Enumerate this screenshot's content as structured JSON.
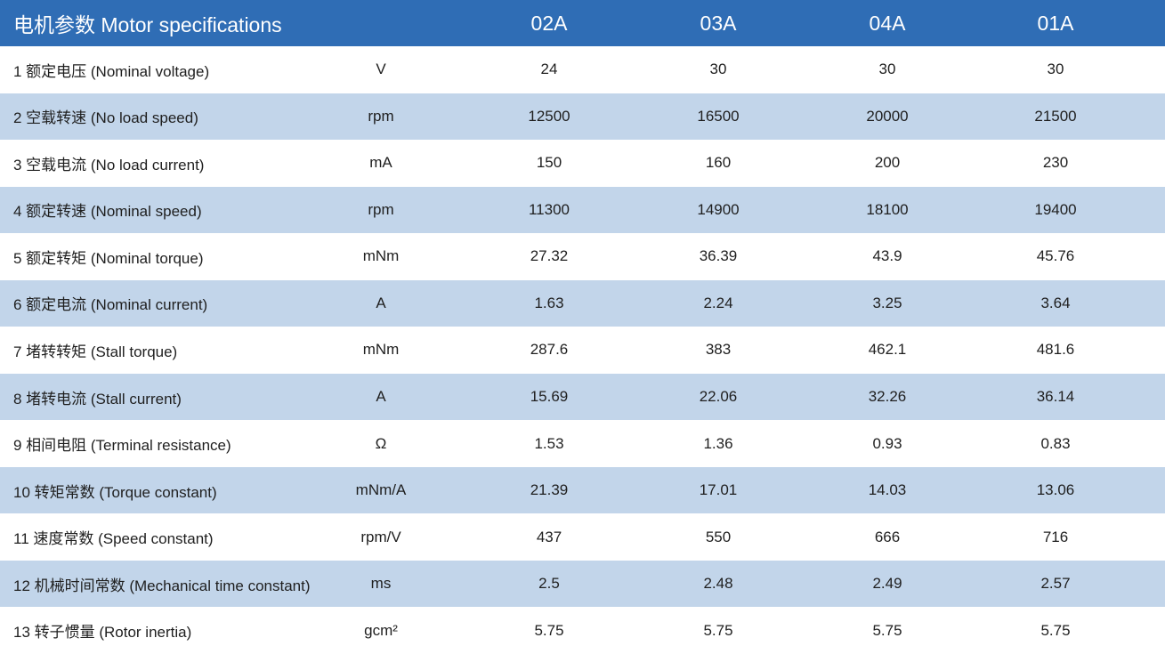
{
  "table": {
    "title": "电机参数 Motor specifications",
    "columns": [
      "02A",
      "03A",
      "04A",
      "01A"
    ],
    "rows": [
      [
        "1 额定电压 (Nominal voltage)",
        "V",
        24,
        30,
        30,
        30
      ],
      [
        "2 空载转速 (No load speed)",
        "rpm",
        12500,
        16500,
        20000,
        21500
      ],
      [
        "3 空载电流 (No load current)",
        "mA",
        150,
        160,
        200,
        230
      ],
      [
        "4 额定转速 (Nominal speed)",
        "rpm",
        11300,
        14900,
        18100,
        19400
      ],
      [
        "5 额定转矩 (Nominal torque)",
        "mNm",
        27.32,
        36.39,
        43.9,
        45.76
      ],
      [
        "6 额定电流 (Nominal current)",
        "A",
        1.63,
        2.24,
        3.25,
        3.64
      ],
      [
        "7 堵转转矩 (Stall torque)",
        "mNm",
        287.6,
        383,
        462.1,
        481.6
      ],
      [
        "8 堵转电流 (Stall current)",
        "A",
        15.69,
        22.06,
        32.26,
        36.14
      ],
      [
        "9 相间电阻 (Terminal resistance)",
        "Ω",
        1.53,
        1.36,
        0.93,
        0.83
      ],
      [
        "10 转矩常数 (Torque constant)",
        "mNm/A",
        21.39,
        17.01,
        14.03,
        13.06
      ],
      [
        "11 速度常数 (Speed constant)",
        "rpm/V",
        437,
        550,
        666,
        716
      ],
      [
        "12 机械时间常数 (Mechanical time constant)",
        "ms",
        2.5,
        2.48,
        2.49,
        2.57
      ],
      [
        "13 转子惯量 (Rotor inertia)",
        "gcm²",
        5.75,
        5.75,
        5.75,
        5.75
      ]
    ]
  }
}
